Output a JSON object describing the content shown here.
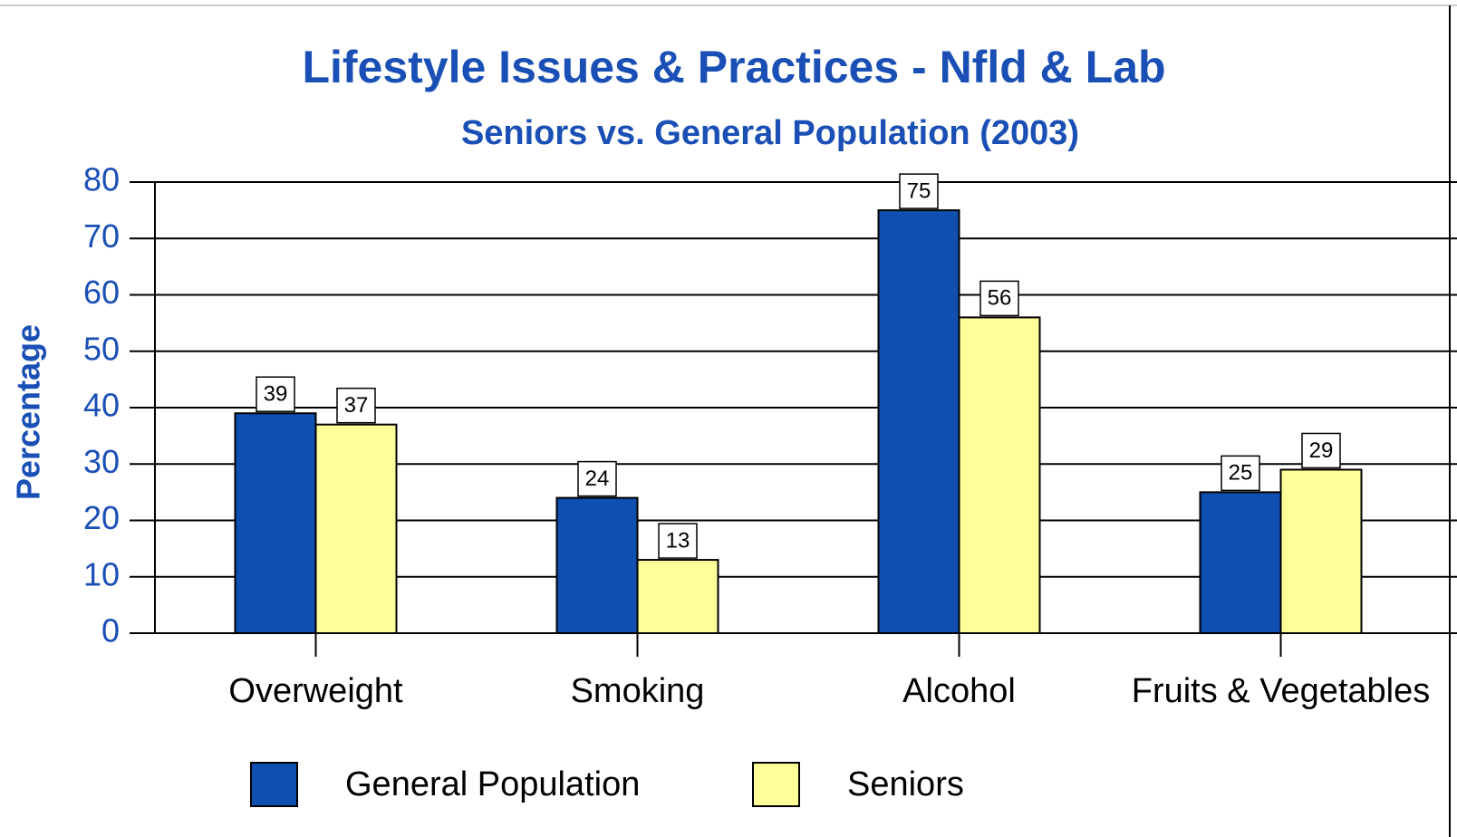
{
  "chart_data": {
    "type": "bar",
    "title": "Lifestyle Issues & Practices - Nfld & Lab",
    "subtitle": "Seniors vs. General Population (2003)",
    "y_label": "Percentage",
    "categories": [
      "Overweight",
      "Smoking",
      "Alcohol",
      "Fruits & Vegetables"
    ],
    "series": [
      {
        "name": "General Population",
        "color": "#0f4fb0",
        "values": [
          39,
          24,
          75,
          25
        ]
      },
      {
        "name": "Seniors",
        "color": "#ffff99",
        "values": [
          37,
          13,
          56,
          29
        ]
      }
    ],
    "ylim": [
      0,
      80
    ],
    "yticks": [
      0,
      10,
      20,
      30,
      40,
      50,
      60,
      70,
      80
    ],
    "grid": true,
    "legend": "bottom"
  }
}
